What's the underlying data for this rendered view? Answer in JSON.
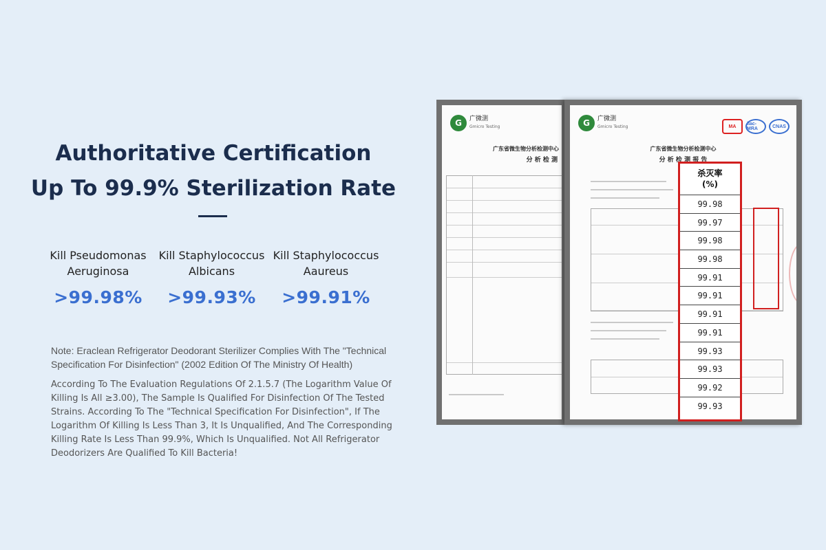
{
  "headline": {
    "line1": "Authoritative Certification",
    "line2": "Up To 99.9% Sterilization Rate"
  },
  "stats": [
    {
      "name_line1": "Kill Pseudomonas",
      "name_line2": "Aeruginosa",
      "value": ">99.98%"
    },
    {
      "name_line1": "Kill Staphylococcus",
      "name_line2": "Albicans",
      "value": ">99.93%"
    },
    {
      "name_line1": "Kill Staphylococcus",
      "name_line2": "Aaureus",
      "value": ">99.91%"
    }
  ],
  "note": {
    "paragraph1": "Note: Eraclean Refrigerator Deodorant Sterilizer Complies With The \"Technical Specification For Disinfection\" (2002 Edition Of The Ministry Of Health)",
    "paragraph2": "According To The Evaluation Regulations Of 2.1.5.7 (The Logarithm Value Of Killing Is All ≥3.00), The Sample Is Qualified For Disinfection Of The Tested Strains. According To The \"Technical Specification For Disinfection\", If The Logarithm Of Killing Is Less Than 3, It Is Unqualified, And The Corresponding Killing Rate Is Less Than 99.9%, Which Is Unqualified. Not All Refrigerator Deodorizers Are Qualified To Kill Bacteria!"
  },
  "certificate": {
    "logo_cn": "广微测",
    "logo_en": "Gmicro Testing",
    "logo_mark": "G",
    "org_title": "广东省微生物分析检测中心",
    "report_title": "分 析 检 测 报 告",
    "back_report_title": "分 析 检 测",
    "marks": [
      "MA",
      "ilac-MRA",
      "CNAS"
    ],
    "kill_rate_header_line1": "杀灭率",
    "kill_rate_header_line2": "(%)",
    "kill_rates": [
      "99.98",
      "99.97",
      "99.98",
      "99.98",
      "99.91",
      "99.91",
      "99.91",
      "99.91",
      "99.93",
      "99.93",
      "99.92",
      "99.93"
    ]
  }
}
